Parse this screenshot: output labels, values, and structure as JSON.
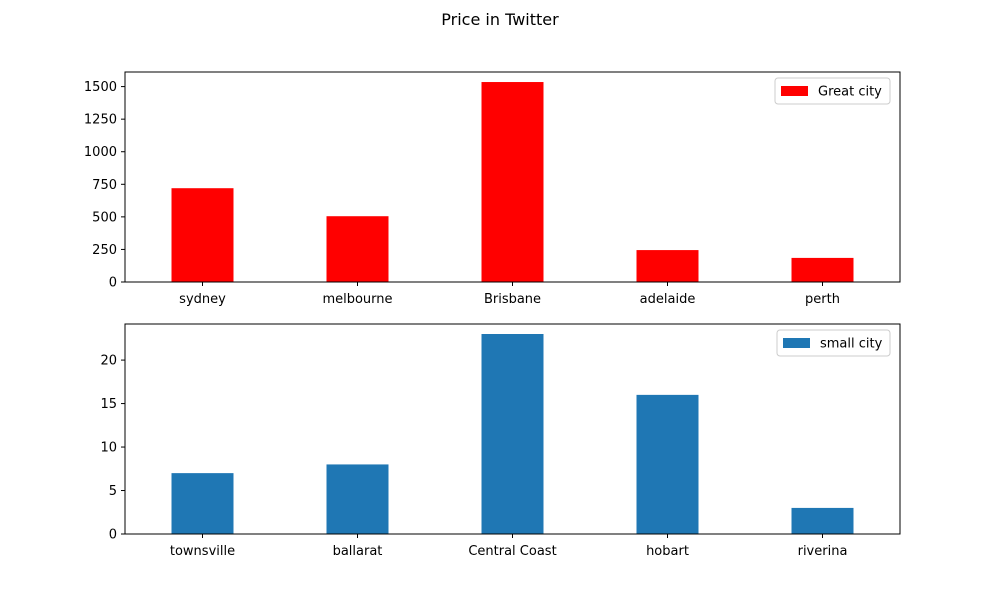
{
  "figure": {
    "title": "Price in Twitter"
  },
  "chart_data": [
    {
      "type": "bar",
      "categories": [
        "sydney",
        "melbourne",
        "Brisbane",
        "adelaide",
        "perth"
      ],
      "series": [
        {
          "name": "Great city",
          "values": [
            720,
            505,
            1535,
            245,
            185
          ],
          "color": "#ff0000"
        }
      ],
      "title": "",
      "xlabel": "",
      "ylabel": "",
      "ylim": [
        0,
        1612
      ],
      "yticks": [
        0,
        250,
        500,
        750,
        1000,
        1250,
        1500
      ],
      "grid": false,
      "legend": "top-right"
    },
    {
      "type": "bar",
      "categories": [
        "townsville",
        "ballarat",
        "Central Coast",
        "hobart",
        "riverina"
      ],
      "series": [
        {
          "name": "small city",
          "values": [
            7,
            8,
            23,
            16,
            3
          ],
          "color": "#1f77b4"
        }
      ],
      "title": "",
      "xlabel": "",
      "ylabel": "",
      "ylim": [
        0,
        24.15
      ],
      "yticks": [
        0,
        5,
        10,
        15,
        20
      ],
      "grid": false,
      "legend": "top-right"
    }
  ]
}
